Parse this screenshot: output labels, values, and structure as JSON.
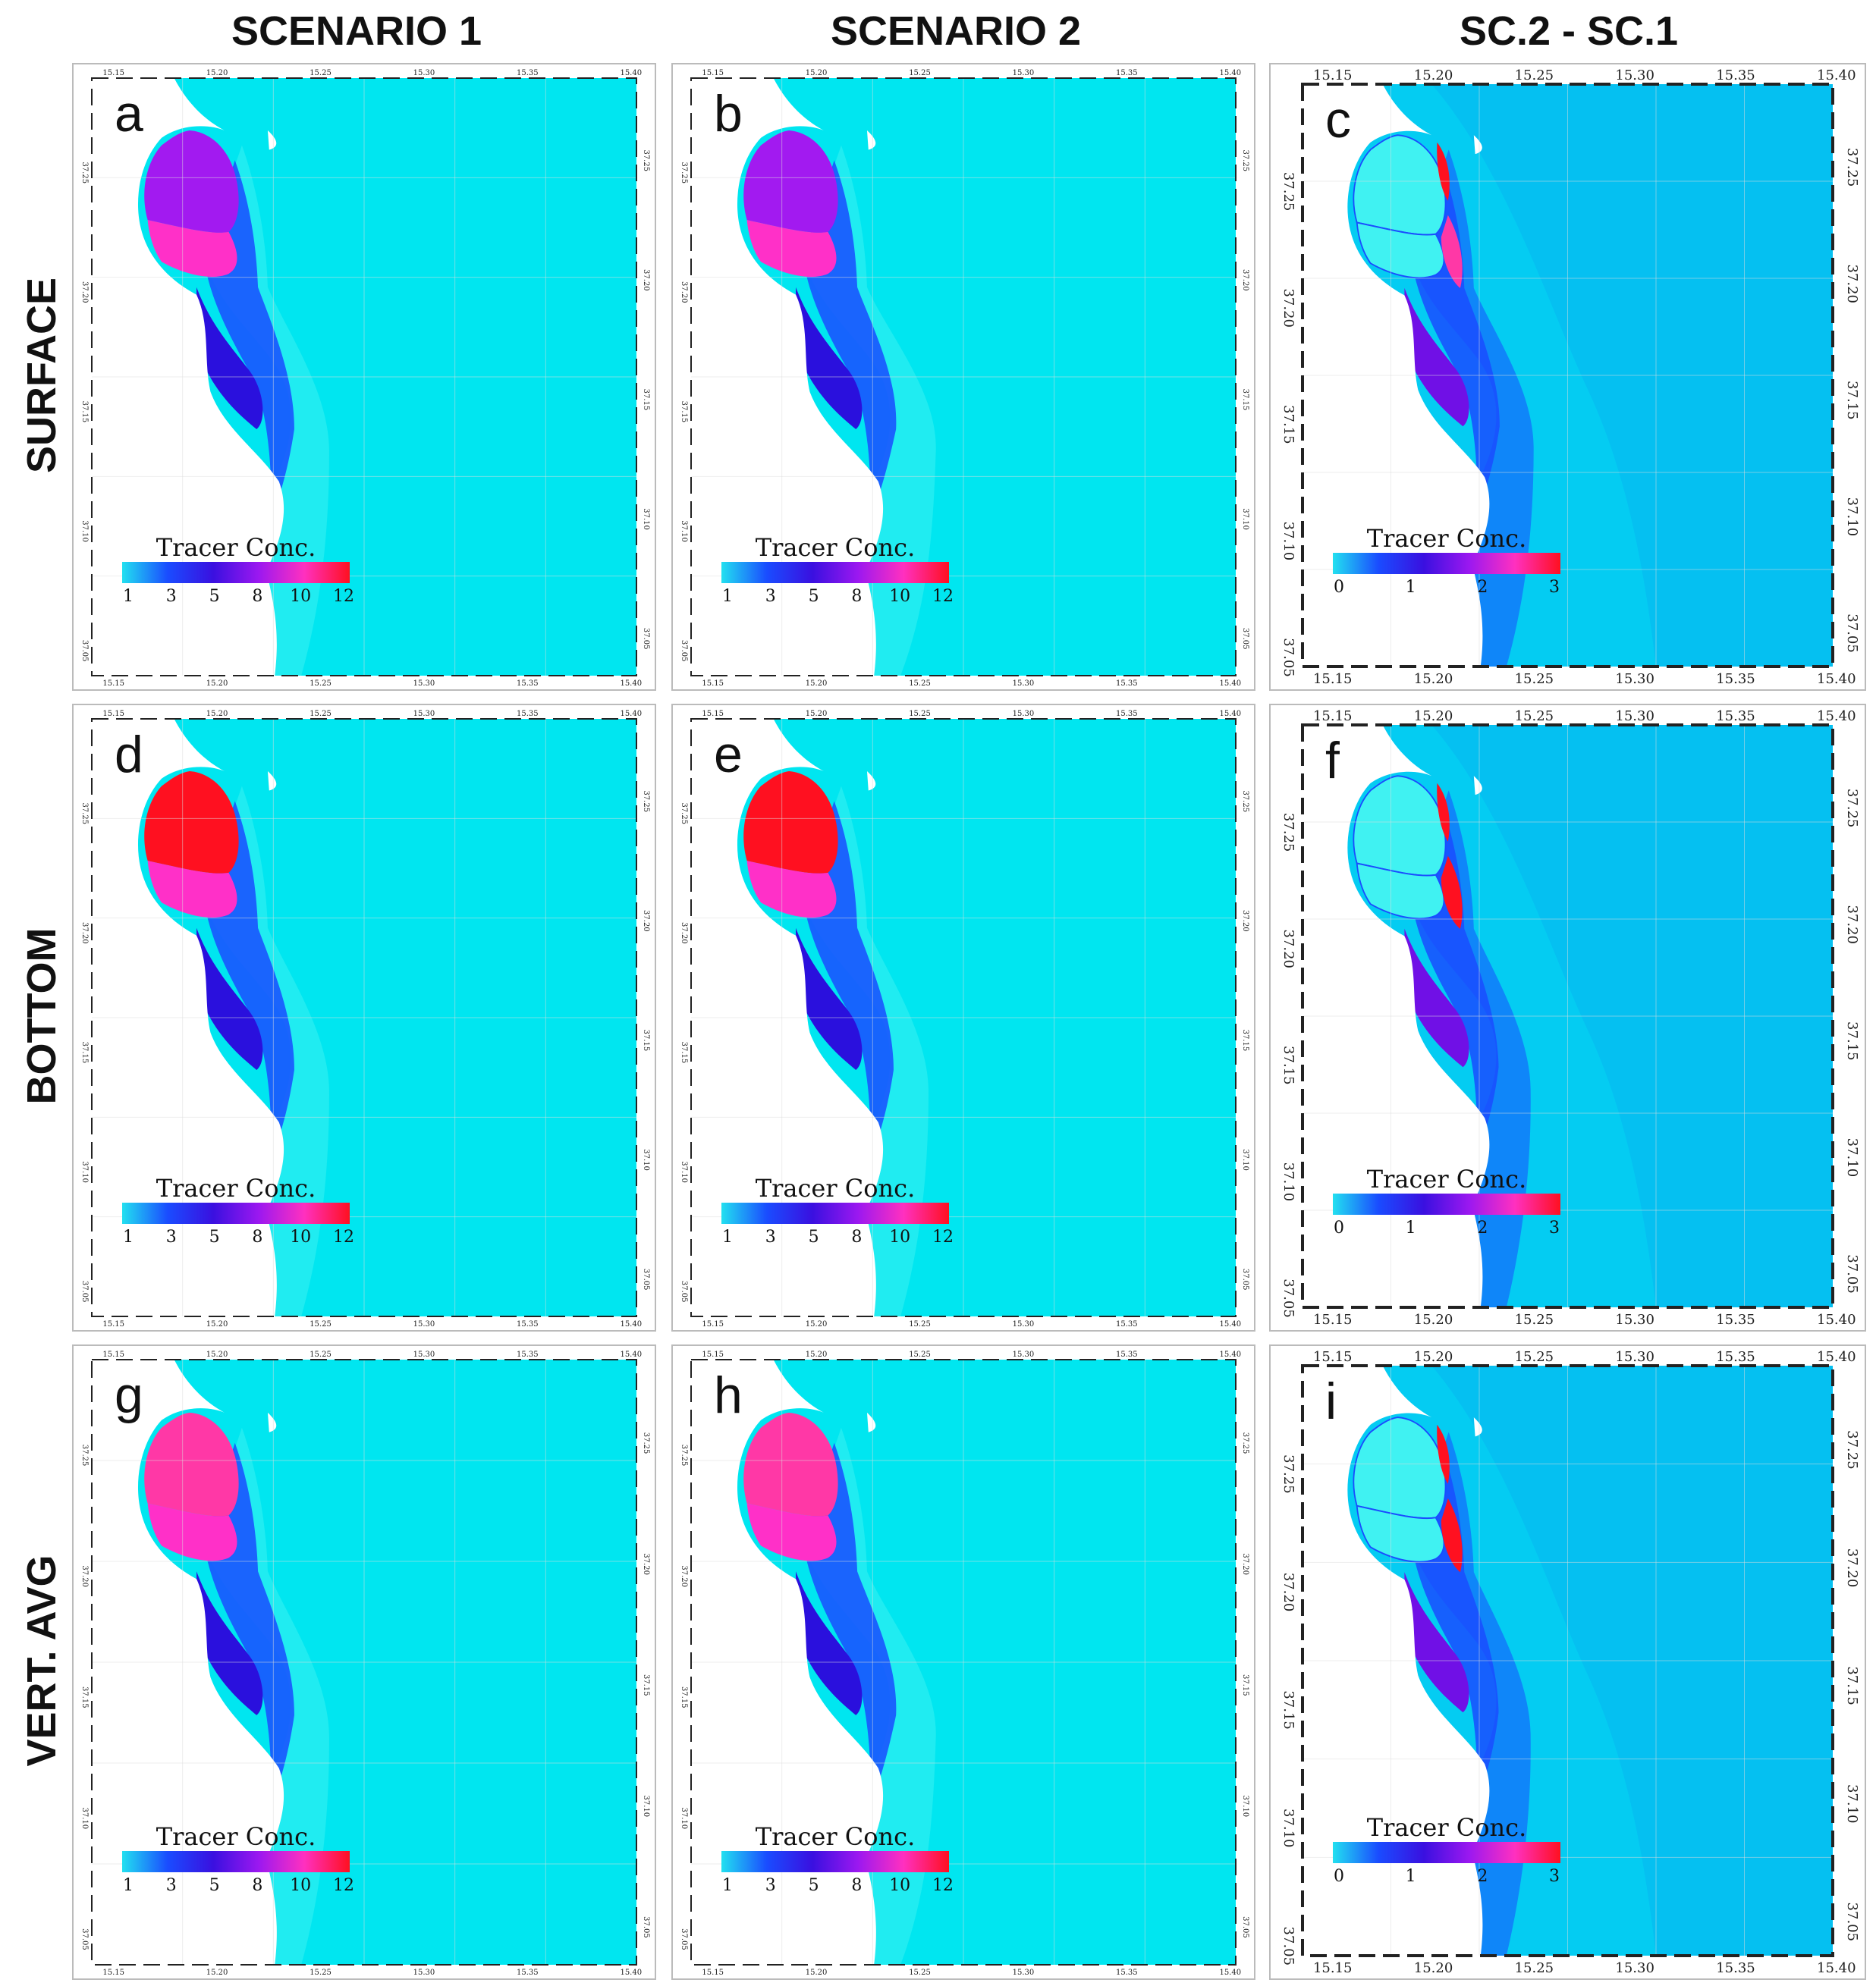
{
  "columns": [
    "SCENARIO 1",
    "SCENARIO 2",
    "SC.2 - SC.1"
  ],
  "rows": [
    "SURFACE",
    "BOTTOM",
    "VERT. AVG"
  ],
  "legend_title": "Tracer Conc.",
  "scenario_scale": {
    "ticks": [
      "1",
      "3",
      "5",
      "8",
      "10",
      "12"
    ],
    "gradient": [
      "#22e0f0",
      "#1a4cff",
      "#3a10e0",
      "#9b18f0",
      "#ff30c0",
      "#ff1020"
    ]
  },
  "difference_scale": {
    "ticks": [
      "0",
      "1",
      "2",
      "3"
    ],
    "gradient": [
      "#22e0f0",
      "#1a4cff",
      "#3a10e0",
      "#9b18f0",
      "#ff30c0",
      "#ff1020"
    ]
  },
  "lon_ticks": [
    "15.15",
    "15.20",
    "15.25",
    "15.30",
    "15.35",
    "15.40"
  ],
  "lat_ticks": [
    "37.25",
    "37.20",
    "37.15",
    "37.10",
    "37.05"
  ],
  "colors": {
    "sea": "#00e6f0",
    "land": "#ffffff",
    "diff_sea": "#04ccf2",
    "diff_sea_band": "#0aa8f0",
    "blue": "#1a4cff",
    "dark_blue": "#2a10dd",
    "purple": "#a21af0",
    "violet": "#7010e6",
    "magenta": "#ff30c8",
    "pink": "#ff38a6",
    "red": "#ff1020",
    "light_cyan": "#40f2f2"
  },
  "panels": [
    {
      "id": "a",
      "label": "a",
      "kind": "scenario",
      "upper": "purple",
      "lower": "magenta",
      "plume": "mid"
    },
    {
      "id": "b",
      "label": "b",
      "kind": "scenario",
      "upper": "purple",
      "lower": "magenta",
      "plume": "wide"
    },
    {
      "id": "c",
      "label": "c",
      "kind": "difference",
      "hot1": "red",
      "hot2": "pink",
      "plume": "mid"
    },
    {
      "id": "d",
      "label": "d",
      "kind": "scenario",
      "upper": "red",
      "lower": "magenta",
      "plume": "mid"
    },
    {
      "id": "e",
      "label": "e",
      "kind": "scenario",
      "upper": "red",
      "lower": "magenta",
      "plume": "mid"
    },
    {
      "id": "f",
      "label": "f",
      "kind": "difference",
      "hot1": "red",
      "hot2": "red",
      "plume": "narrow"
    },
    {
      "id": "g",
      "label": "g",
      "kind": "scenario",
      "upper": "pink",
      "lower": "magenta",
      "plume": "mid"
    },
    {
      "id": "h",
      "label": "h",
      "kind": "scenario",
      "upper": "pink",
      "lower": "magenta",
      "plume": "wide"
    },
    {
      "id": "i",
      "label": "i",
      "kind": "difference",
      "hot1": "red",
      "hot2": "red",
      "plume": "narrow"
    }
  ]
}
